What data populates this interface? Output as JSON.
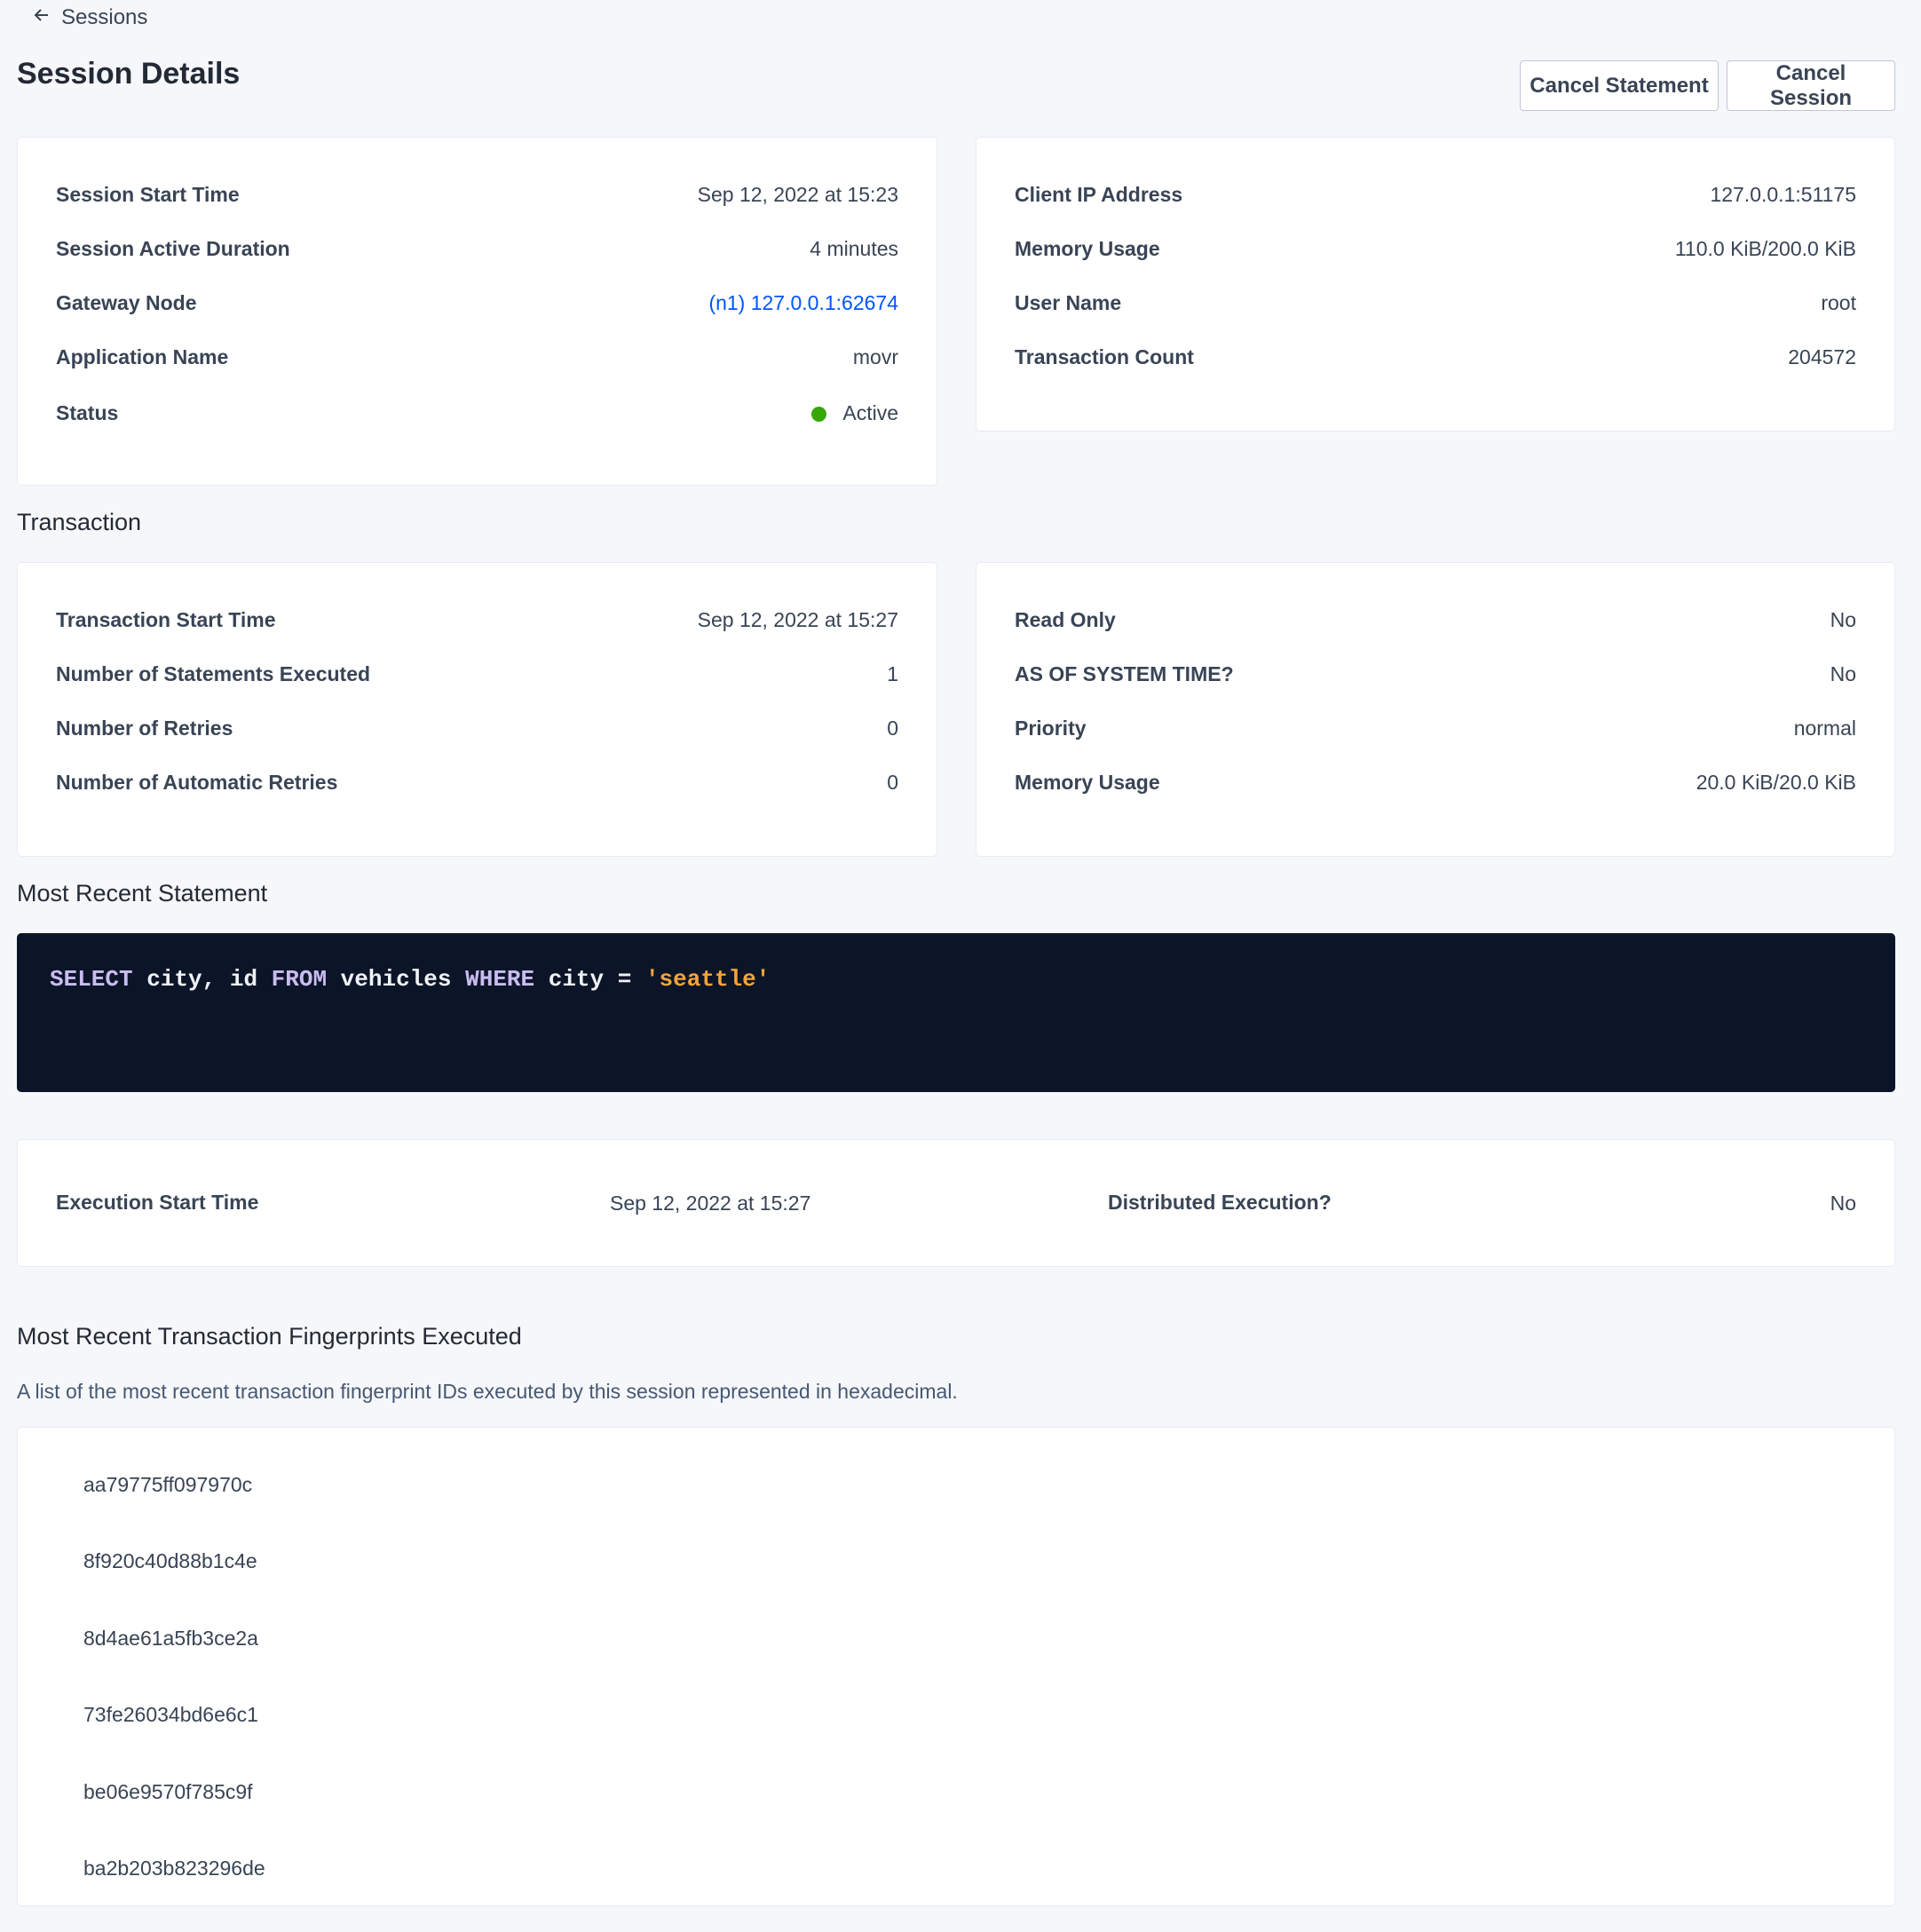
{
  "breadcrumb": {
    "icon": "arrow-left-icon",
    "label": "Sessions"
  },
  "header": {
    "title": "Session Details",
    "cancel_statement": "Cancel Statement",
    "cancel_session": "Cancel Session"
  },
  "session_left": [
    {
      "label": "Session Start Time",
      "value": "Sep 12, 2022 at 15:23"
    },
    {
      "label": "Session Active Duration",
      "value": "4 minutes"
    },
    {
      "label": "Gateway Node",
      "value": "(n1) 127.0.0.1:62674"
    },
    {
      "label": "Application Name",
      "value": "movr"
    },
    {
      "label": "Status",
      "value": "Active"
    }
  ],
  "session_right": [
    {
      "label": "Client IP Address",
      "value": "127.0.0.1:51175"
    },
    {
      "label": "Memory Usage",
      "value": "110.0 KiB/200.0 KiB"
    },
    {
      "label": "User Name",
      "value": "root"
    },
    {
      "label": "Transaction Count",
      "value": "204572"
    }
  ],
  "transaction": {
    "heading": "Transaction",
    "left": [
      {
        "label": "Transaction Start Time",
        "value": "Sep 12, 2022 at 15:27"
      },
      {
        "label": "Number of Statements Executed",
        "value": "1"
      },
      {
        "label": "Number of Retries",
        "value": "0"
      },
      {
        "label": "Number of Automatic Retries",
        "value": "0"
      }
    ],
    "right": [
      {
        "label": "Read Only",
        "value": "No"
      },
      {
        "label": "AS OF SYSTEM TIME?",
        "value": "No"
      },
      {
        "label": "Priority",
        "value": "normal"
      },
      {
        "label": "Memory Usage",
        "value": "20.0 KiB/20.0 KiB"
      }
    ]
  },
  "statement": {
    "heading": "Most Recent Statement",
    "sql_tokens": [
      "SELECT",
      " city, id ",
      "FROM",
      " vehicles ",
      "WHERE",
      " city = ",
      "'seattle'"
    ],
    "execution_start_label": "Execution Start Time",
    "execution_start_value": "Sep 12, 2022 at 15:27",
    "distributed_label": "Distributed Execution?",
    "distributed_value": "No"
  },
  "fingerprints": {
    "heading": "Most Recent Transaction Fingerprints Executed",
    "description": "A list of the most recent transaction fingerprint IDs executed by this session represented in hexadecimal.",
    "items": [
      "aa79775ff097970c",
      "8f920c40d88b1c4e",
      "8d4ae61a5fb3ce2a",
      "73fe26034bd6e6c1",
      "be06e9570f785c9f",
      "ba2b203b823296de"
    ]
  },
  "colors": {
    "link": "#0055ff",
    "status_active": "#37a806",
    "code_bg": "#0c1528",
    "keyword": "#c9bcf0",
    "string": "#f5a33a"
  }
}
